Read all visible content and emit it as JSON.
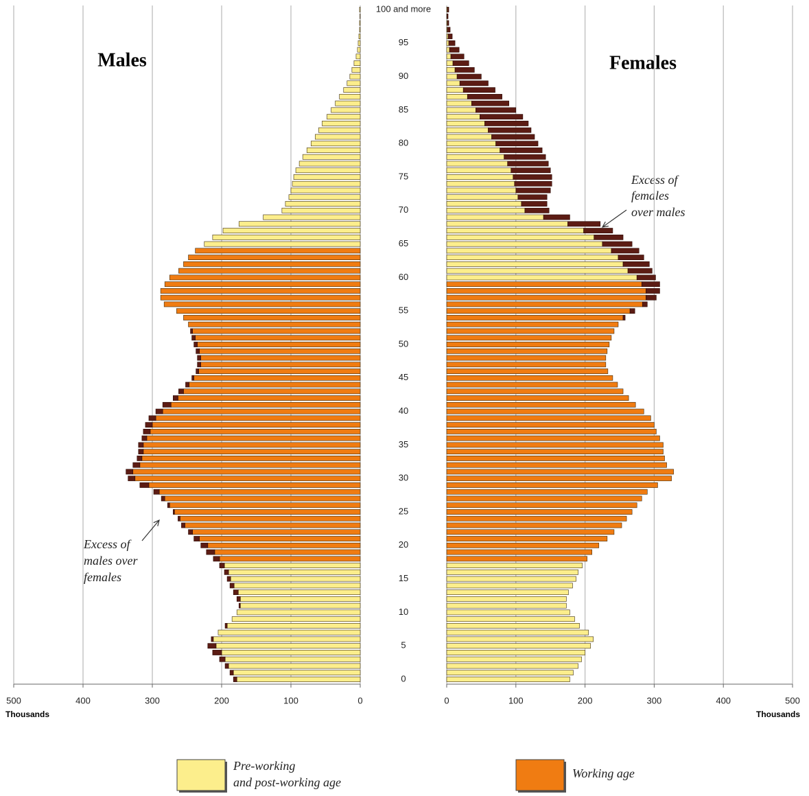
{
  "chart_data": {
    "type": "pyramid",
    "categories": [
      "0",
      null,
      null,
      null,
      null,
      "5",
      null,
      null,
      null,
      null,
      "10",
      null,
      null,
      null,
      null,
      "15",
      null,
      null,
      null,
      null,
      "20",
      null,
      null,
      null,
      null,
      "25",
      null,
      null,
      null,
      null,
      "30",
      null,
      null,
      null,
      null,
      "35",
      null,
      null,
      null,
      null,
      "40",
      null,
      null,
      null,
      null,
      "45",
      null,
      null,
      null,
      null,
      "50",
      null,
      null,
      null,
      null,
      "55",
      null,
      null,
      null,
      null,
      "60",
      null,
      null,
      null,
      null,
      "65",
      null,
      null,
      null,
      null,
      "70",
      null,
      null,
      null,
      null,
      "75",
      null,
      null,
      null,
      null,
      "80",
      null,
      null,
      null,
      null,
      "85",
      null,
      null,
      null,
      null,
      "90",
      null,
      null,
      null,
      null,
      "95",
      null,
      null,
      null,
      null,
      "100 and more"
    ],
    "series": [
      {
        "name": "Males",
        "working_age": [
          18,
          64
        ],
        "values": [
          183,
          188,
          195,
          203,
          213,
          220,
          215,
          205,
          195,
          185,
          178,
          175,
          178,
          183,
          188,
          192,
          196,
          203,
          212,
          222,
          230,
          240,
          248,
          258,
          263,
          270,
          278,
          287,
          298,
          318,
          335,
          338,
          328,
          322,
          320,
          320,
          315,
          313,
          310,
          305,
          295,
          285,
          270,
          262,
          252,
          243,
          237,
          235,
          235,
          237,
          240,
          243,
          245,
          248,
          255,
          265,
          283,
          288,
          288,
          282,
          275,
          262,
          255,
          248,
          238,
          225,
          213,
          198,
          175,
          140,
          113,
          108,
          103,
          100,
          98,
          96,
          93,
          88,
          83,
          77,
          71,
          65,
          60,
          55,
          48,
          42,
          36,
          30,
          24,
          19,
          15,
          12,
          9,
          6,
          4,
          3,
          2,
          1,
          1,
          0.5,
          1
        ]
      },
      {
        "name": "Females",
        "working_age": [
          18,
          59
        ],
        "values": [
          178,
          183,
          190,
          195,
          200,
          208,
          212,
          205,
          192,
          185,
          178,
          173,
          173,
          176,
          182,
          187,
          190,
          196,
          203,
          210,
          220,
          232,
          242,
          253,
          260,
          268,
          275,
          282,
          290,
          305,
          325,
          328,
          318,
          315,
          313,
          313,
          308,
          303,
          300,
          295,
          285,
          273,
          263,
          255,
          247,
          240,
          233,
          230,
          230,
          232,
          235,
          238,
          242,
          248,
          258,
          272,
          290,
          303,
          308,
          308,
          302,
          297,
          293,
          285,
          278,
          268,
          255,
          240,
          222,
          178,
          148,
          145,
          145,
          150,
          152,
          152,
          150,
          147,
          143,
          138,
          132,
          127,
          122,
          118,
          110,
          100,
          90,
          80,
          70,
          60,
          50,
          40,
          32,
          25,
          18,
          12,
          8,
          5,
          3,
          2,
          3
        ]
      }
    ],
    "excess_color": "#5c1c14",
    "legend": [
      {
        "label": [
          "Pre-working",
          "and post-working age"
        ],
        "color": "#fcee8c"
      },
      {
        "label": [
          "Working age"
        ],
        "color": "#f07c12"
      }
    ],
    "xlabel": "Thousands",
    "xlim": [
      0,
      500
    ],
    "xticks": [
      0,
      100,
      200,
      300,
      400,
      500
    ],
    "grid": true,
    "annotations": [
      {
        "text": [
          "Excess of",
          "males over",
          "females"
        ]
      },
      {
        "text": [
          "Excess of",
          "females",
          "over males"
        ]
      }
    ]
  }
}
